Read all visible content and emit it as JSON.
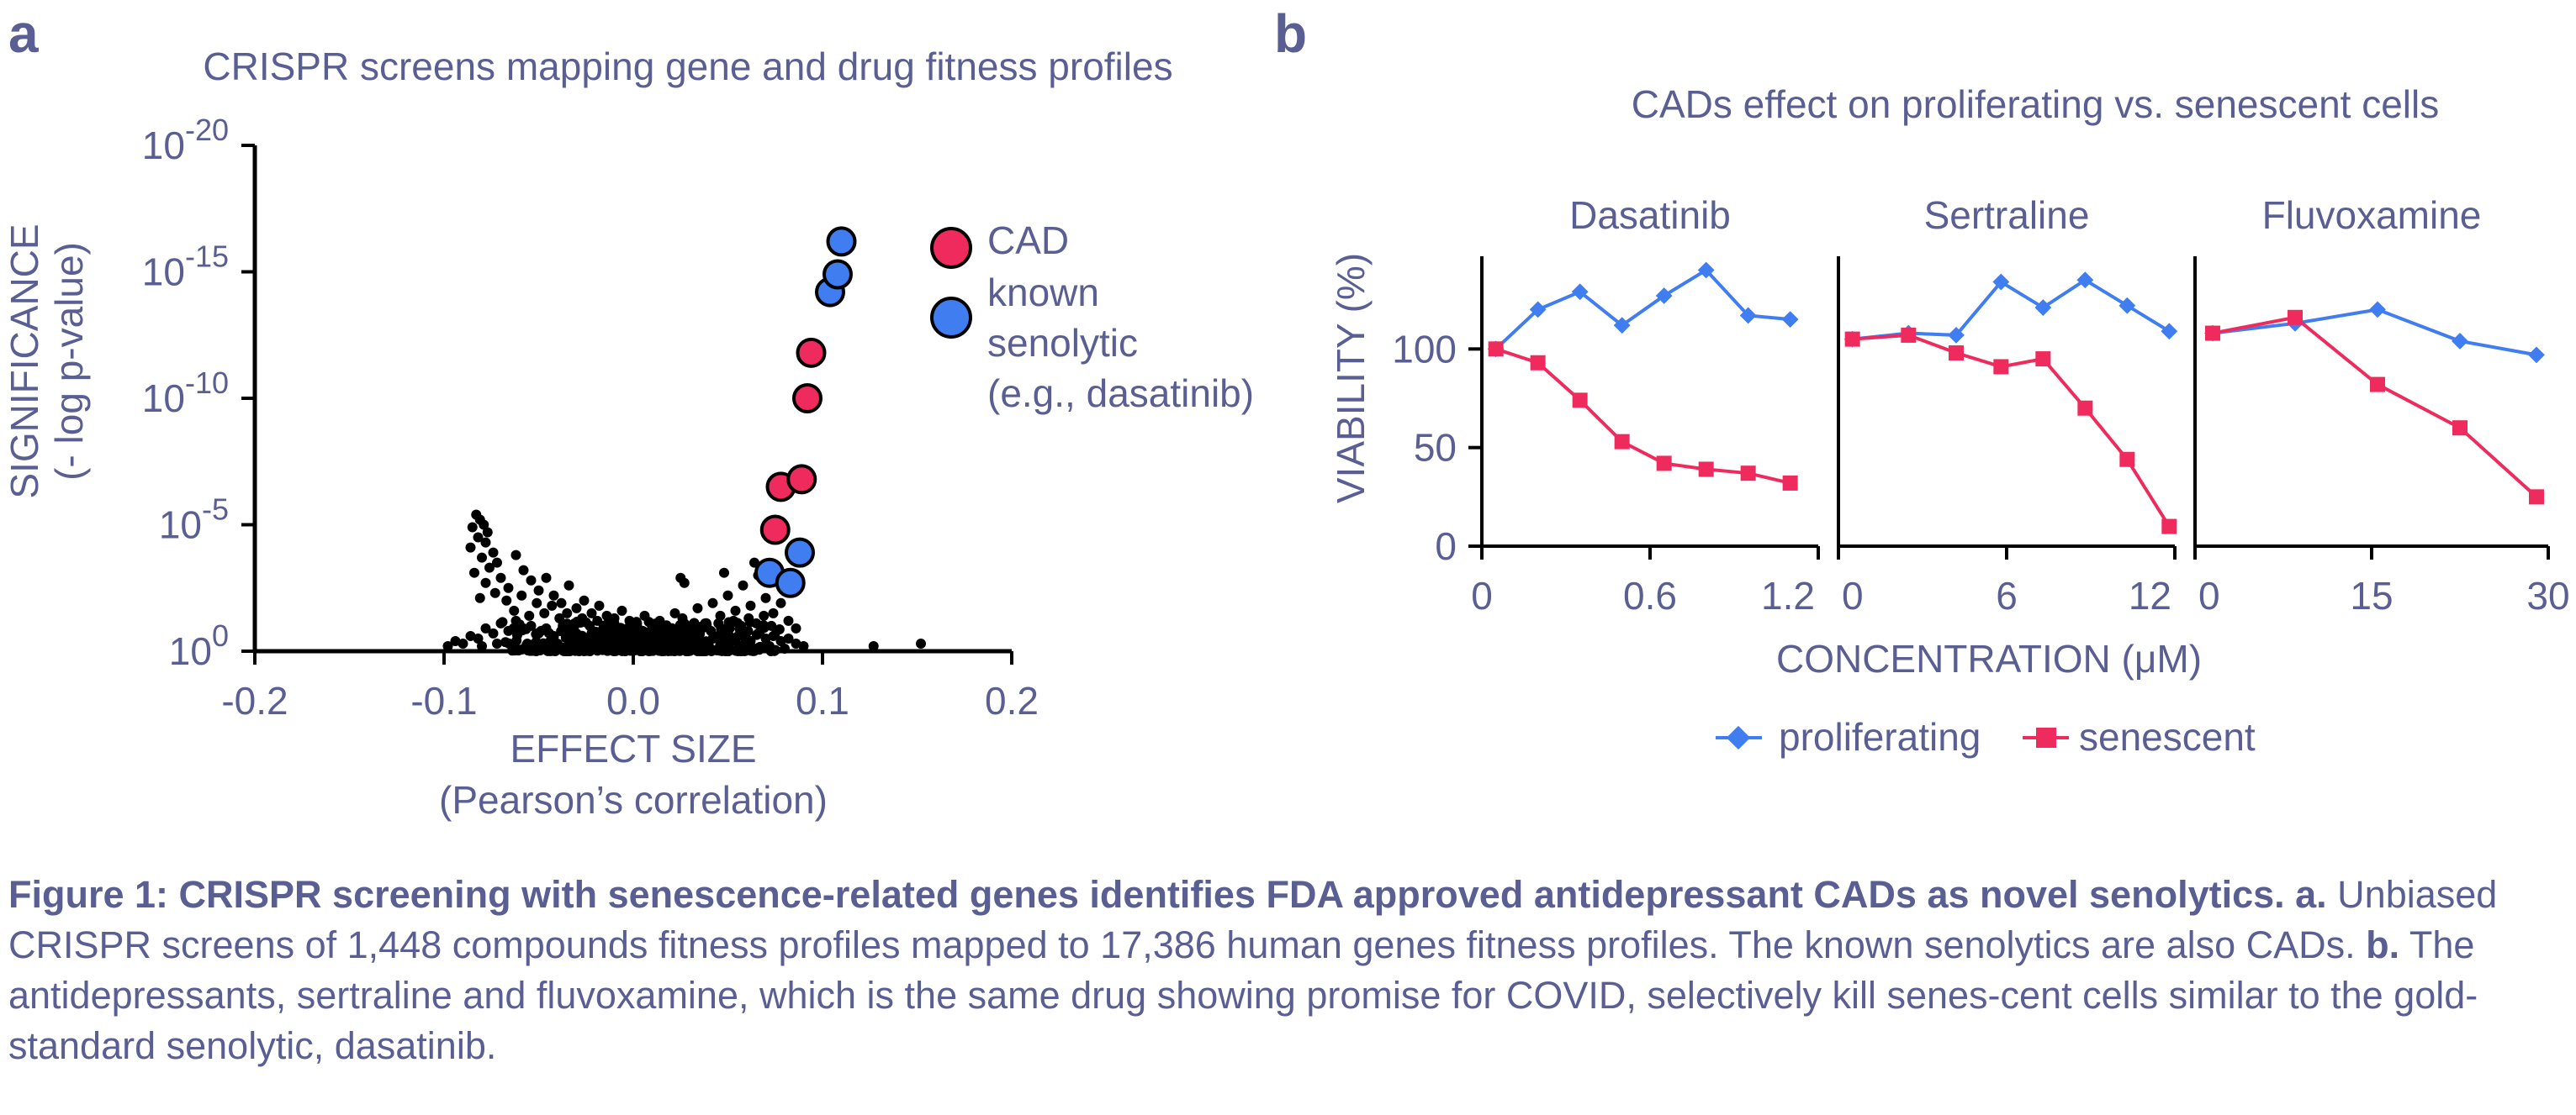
{
  "colors": {
    "text": "#5a5f93",
    "proliferating": "#3f7df0",
    "senescent": "#ee2b5c",
    "cad": "#ee2b5c",
    "senolytic": "#3f7df0",
    "dots": "#000000",
    "axis": "#000000"
  },
  "panel_labels": {
    "a": "a",
    "b": "b"
  },
  "chart_data": [
    {
      "type": "scatter",
      "title": "CRISPR screens mapping gene and drug fitness profiles",
      "xlabel": "EFFECT SIZE",
      "xlabel2": "(Pearson’s correlation)",
      "ylabel": "SIGNIFICANCE",
      "ylabel2": "(- log p-value)",
      "xlim": [
        -0.2,
        0.2
      ],
      "ylim": [
        0,
        20
      ],
      "xticks": [
        "-0.2",
        "-0.1",
        "0.0",
        "0.1",
        "0.2"
      ],
      "xtick_values": [
        -0.2,
        -0.1,
        0.0,
        0.1,
        0.2
      ],
      "yticks": [
        {
          "value": 0,
          "base": "10",
          "exp": "0"
        },
        {
          "value": 5,
          "base": "10",
          "exp": "-5"
        },
        {
          "value": 10,
          "base": "10",
          "exp": "-10"
        },
        {
          "value": 15,
          "base": "10",
          "exp": "-15"
        },
        {
          "value": 20,
          "base": "10",
          "exp": "-20"
        }
      ],
      "legend": {
        "placement": "top-right",
        "items": [
          {
            "label": "CAD",
            "color": "#ee2b5c"
          },
          {
            "label": "known",
            "label2": "senolytic",
            "label3": "(e.g., dasatinib)",
            "color": "#3f7df0"
          }
        ]
      },
      "highlight_cad": [
        [
          0.078,
          6.5
        ],
        [
          0.075,
          4.8
        ],
        [
          0.089,
          6.8
        ],
        [
          0.092,
          10.0
        ],
        [
          0.094,
          11.8
        ]
      ],
      "highlight_senolytic": [
        [
          0.072,
          3.1
        ],
        [
          0.083,
          2.7
        ],
        [
          0.088,
          3.9
        ],
        [
          0.104,
          14.2
        ],
        [
          0.108,
          14.9
        ],
        [
          0.11,
          16.2
        ]
      ],
      "background_points": [
        [
          -0.083,
          5.4
        ],
        [
          -0.081,
          5.2
        ],
        [
          -0.079,
          5.0
        ],
        [
          -0.085,
          4.9
        ],
        [
          -0.077,
          4.7
        ],
        [
          -0.082,
          4.5
        ],
        [
          -0.078,
          4.3
        ],
        [
          -0.086,
          4.1
        ],
        [
          -0.074,
          3.9
        ],
        [
          -0.08,
          3.7
        ],
        [
          -0.072,
          3.5
        ],
        [
          -0.076,
          3.3
        ],
        [
          -0.084,
          3.1
        ],
        [
          -0.07,
          2.9
        ],
        [
          -0.078,
          2.7
        ],
        [
          -0.066,
          2.5
        ],
        [
          -0.073,
          2.3
        ],
        [
          -0.081,
          2.1
        ],
        [
          -0.062,
          3.8
        ],
        [
          -0.058,
          3.2
        ],
        [
          -0.054,
          2.8
        ],
        [
          -0.05,
          2.4
        ],
        [
          -0.046,
          2.9
        ],
        [
          -0.042,
          2.2
        ],
        [
          -0.038,
          1.9
        ],
        [
          -0.034,
          2.6
        ],
        [
          -0.03,
          1.7
        ],
        [
          -0.026,
          2.0
        ],
        [
          -0.022,
          1.5
        ],
        [
          -0.018,
          1.8
        ],
        [
          -0.014,
          1.4
        ],
        [
          -0.01,
          1.3
        ],
        [
          -0.006,
          1.6
        ],
        [
          -0.002,
          1.2
        ],
        [
          0.002,
          1.1
        ],
        [
          0.006,
          1.4
        ],
        [
          0.01,
          1.0
        ],
        [
          0.014,
          1.2
        ],
        [
          0.018,
          0.9
        ],
        [
          0.022,
          1.5
        ],
        [
          0.026,
          1.3
        ],
        [
          0.03,
          0.8
        ],
        [
          0.034,
          1.7
        ],
        [
          0.038,
          1.1
        ],
        [
          0.042,
          1.9
        ],
        [
          0.046,
          1.4
        ],
        [
          0.05,
          2.2
        ],
        [
          0.054,
          1.6
        ],
        [
          0.058,
          2.6
        ],
        [
          0.062,
          1.8
        ],
        [
          0.066,
          3.0
        ],
        [
          0.07,
          2.1
        ],
        [
          0.074,
          1.5
        ],
        [
          0.078,
          1.9
        ],
        [
          0.082,
          1.2
        ],
        [
          0.086,
          0.9
        ],
        [
          0.025,
          2.9
        ],
        [
          0.027,
          2.7
        ],
        [
          0.048,
          3.1
        ],
        [
          0.064,
          3.5
        ],
        [
          -0.067,
          2.0
        ],
        [
          -0.063,
          1.6
        ],
        [
          -0.059,
          2.2
        ],
        [
          -0.055,
          1.4
        ],
        [
          -0.051,
          1.9
        ],
        [
          -0.047,
          1.5
        ],
        [
          -0.043,
          1.8
        ],
        [
          -0.039,
          1.3
        ],
        [
          -0.035,
          1.5
        ],
        [
          -0.031,
          1.1
        ],
        [
          -0.027,
          1.3
        ],
        [
          -0.023,
          1.0
        ],
        [
          -0.019,
          1.2
        ],
        [
          -0.015,
          0.9
        ],
        [
          -0.011,
          1.0
        ],
        [
          -0.007,
          0.8
        ],
        [
          -0.003,
          0.9
        ],
        [
          0.001,
          0.7
        ],
        [
          0.005,
          0.8
        ],
        [
          0.009,
          0.6
        ],
        [
          0.013,
          0.9
        ],
        [
          0.017,
          0.7
        ],
        [
          0.021,
          0.8
        ],
        [
          0.025,
          0.6
        ],
        [
          0.029,
          0.9
        ],
        [
          0.033,
          0.7
        ],
        [
          0.037,
          1.0
        ],
        [
          0.041,
          0.8
        ],
        [
          0.045,
          1.1
        ],
        [
          0.049,
          0.9
        ],
        [
          0.053,
          1.2
        ],
        [
          0.057,
          1.0
        ],
        [
          0.061,
          1.3
        ],
        [
          0.065,
          1.1
        ],
        [
          0.069,
          1.4
        ],
        [
          0.073,
          1.0
        ],
        [
          -0.098,
          0.2
        ],
        [
          -0.094,
          0.4
        ],
        [
          -0.09,
          0.3
        ],
        [
          -0.086,
          0.6
        ],
        [
          -0.082,
          0.5
        ],
        [
          -0.078,
          0.9
        ],
        [
          -0.074,
          0.7
        ],
        [
          -0.07,
          1.1
        ],
        [
          -0.066,
          0.8
        ],
        [
          -0.062,
          1.2
        ],
        [
          -0.058,
          0.9
        ],
        [
          -0.054,
          1.0
        ],
        [
          -0.05,
          0.7
        ],
        [
          -0.046,
          0.9
        ],
        [
          -0.042,
          0.6
        ],
        [
          -0.038,
          0.8
        ],
        [
          -0.034,
          0.5
        ],
        [
          -0.03,
          0.7
        ],
        [
          -0.026,
          0.4
        ],
        [
          -0.022,
          0.6
        ],
        [
          -0.018,
          0.4
        ],
        [
          -0.014,
          0.5
        ],
        [
          -0.01,
          0.3
        ],
        [
          -0.006,
          0.5
        ],
        [
          -0.002,
          0.3
        ],
        [
          0.002,
          0.4
        ],
        [
          0.006,
          0.2
        ],
        [
          0.01,
          0.4
        ],
        [
          0.014,
          0.3
        ],
        [
          0.018,
          0.5
        ],
        [
          0.022,
          0.3
        ],
        [
          0.026,
          0.4
        ],
        [
          0.03,
          0.2
        ],
        [
          0.034,
          0.4
        ],
        [
          0.038,
          0.3
        ],
        [
          0.042,
          0.5
        ],
        [
          0.046,
          0.3
        ],
        [
          0.05,
          0.5
        ],
        [
          0.054,
          0.4
        ],
        [
          0.058,
          0.6
        ],
        [
          0.062,
          0.4
        ],
        [
          0.066,
          0.7
        ],
        [
          0.07,
          0.5
        ],
        [
          0.074,
          0.6
        ],
        [
          0.078,
          0.4
        ],
        [
          0.082,
          0.5
        ],
        [
          0.086,
          0.3
        ],
        [
          0.09,
          0.2
        ],
        [
          -0.08,
          0.2
        ],
        [
          -0.072,
          0.3
        ],
        [
          -0.064,
          0.2
        ],
        [
          -0.056,
          0.3
        ],
        [
          -0.048,
          0.2
        ],
        [
          -0.04,
          0.3
        ],
        [
          -0.032,
          0.2
        ],
        [
          -0.024,
          0.2
        ],
        [
          -0.016,
          0.1
        ],
        [
          -0.008,
          0.2
        ],
        [
          0.0,
          0.1
        ],
        [
          0.008,
          0.2
        ],
        [
          0.016,
          0.1
        ],
        [
          0.024,
          0.2
        ],
        [
          0.032,
          0.1
        ],
        [
          0.04,
          0.2
        ],
        [
          0.048,
          0.1
        ],
        [
          0.056,
          0.2
        ],
        [
          0.064,
          0.1
        ],
        [
          0.072,
          0.2
        ],
        [
          0.08,
          0.1
        ],
        [
          0.152,
          0.3
        ],
        [
          0.127,
          0.2
        ]
      ]
    },
    {
      "type": "line",
      "title": "Dasatinib",
      "xlim": [
        0,
        1.2
      ],
      "ylim": [
        0,
        150
      ],
      "xticks": [
        "0",
        "0.6",
        "1.2"
      ],
      "xtick_values": [
        0,
        0.6,
        1.2
      ],
      "yticks": [
        "0",
        "50",
        "100"
      ],
      "ytick_values": [
        0,
        50,
        100
      ],
      "x": [
        0.05,
        0.2,
        0.35,
        0.5,
        0.65,
        0.8,
        0.95,
        1.1
      ],
      "series": [
        {
          "name": "proliferating",
          "values": [
            100,
            120,
            129,
            112,
            127,
            140,
            117,
            115
          ]
        },
        {
          "name": "senescent",
          "values": [
            100,
            93,
            74,
            53,
            42,
            39,
            37,
            32
          ]
        }
      ]
    },
    {
      "type": "line",
      "title": "Sertraline",
      "xlim": [
        0,
        12
      ],
      "ylim": [
        0,
        150
      ],
      "xticks": [
        "0",
        "6",
        "12"
      ],
      "xtick_values": [
        0,
        6,
        12
      ],
      "x": [
        0.5,
        2.5,
        4.2,
        5.8,
        7.3,
        8.8,
        10.3,
        11.8
      ],
      "series": [
        {
          "name": "proliferating",
          "values": [
            105,
            108,
            107,
            134,
            121,
            135,
            122,
            109
          ]
        },
        {
          "name": "senescent",
          "values": [
            105,
            107,
            98,
            91,
            95,
            70,
            44,
            10
          ]
        }
      ]
    },
    {
      "type": "line",
      "title": "Fluvoxamine",
      "xlim": [
        0,
        30
      ],
      "ylim": [
        0,
        150
      ],
      "xticks": [
        "0",
        "15",
        "30"
      ],
      "xtick_values": [
        0,
        15,
        30
      ],
      "x": [
        1.5,
        8.5,
        15.5,
        22.5,
        29.0
      ],
      "series": [
        {
          "name": "proliferating",
          "values": [
            108,
            113,
            120,
            104,
            97
          ]
        },
        {
          "name": "senescent",
          "values": [
            108,
            116,
            82,
            60,
            25
          ]
        }
      ]
    }
  ],
  "panel_b": {
    "title": "CADs effect on proliferating vs. senescent cells",
    "ylabel": "VIABILITY (%)",
    "xlabel": "CONCENTRATION (μM)",
    "legend": [
      {
        "label": "proliferating",
        "color": "#3f7df0"
      },
      {
        "label": "senescent",
        "color": "#ee2b5c"
      }
    ]
  },
  "caption": {
    "bold": "Figure 1: CRISPR screening with senescence-related genes identifies FDA approved antidepressant CADs as novel senolytics. a.",
    "text1": " Unbiased CRISPR screens of 1,448 compounds fitness profiles mapped to 17,386 human genes fitness profiles. The known senolytics are also CADs. ",
    "bold2": "b.",
    "text2": " The antidepressants, sertraline and fluvoxamine, which is the same drug showing promise for COVID, selectively kill senes-cent cells similar to the gold-standard senolytic, dasatinib."
  }
}
